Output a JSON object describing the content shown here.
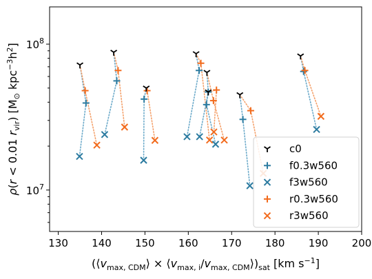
{
  "chart_data": {
    "type": "scatter",
    "xlabel": "(⟨v_max,CDM⟩ × ⟨v_max,i/v_max,CDM⟩)_sat [km s⁻¹]",
    "ylabel": "ρ(r < 0.01 r_vir) [M⊙ kpc⁻³ h²]",
    "xlim": [
      128,
      200
    ],
    "ylim": [
      5200000,
      180000000
    ],
    "yscale": "log",
    "x_ticks": [
      130,
      140,
      150,
      160,
      170,
      180,
      190,
      200
    ],
    "y_ticks": [
      {
        "value": 10000000,
        "label": "10^7"
      },
      {
        "value": 100000000,
        "label": "10^8"
      }
    ],
    "grid": false,
    "legend_position": "lower right",
    "groups": [
      {
        "c0": [
          135.0,
          72000000
        ],
        "f03": [
          136.4,
          39500000
        ],
        "f3": [
          134.9,
          17000000
        ],
        "r03": [
          136.2,
          48000000
        ],
        "r3": [
          138.9,
          20300000
        ]
      },
      {
        "c0": [
          142.8,
          88000000
        ],
        "f03": [
          143.5,
          56000000
        ],
        "f3": [
          140.7,
          24000000
        ],
        "r03": [
          143.8,
          66000000
        ],
        "r3": [
          145.3,
          27000000
        ]
      },
      {
        "c0": [
          150.3,
          50000000
        ],
        "f03": [
          149.8,
          42000000
        ],
        "f3": [
          149.7,
          16000000
        ],
        "r03": [
          150.5,
          48000000
        ],
        "r3": [
          152.3,
          21900000
        ]
      },
      {
        "c0": [
          161.8,
          86000000
        ],
        "f03": [
          162.5,
          66000000
        ],
        "f3": [
          159.7,
          23200000
        ],
        "r03": [
          162.9,
          74000000
        ],
        "r3": [
          164.9,
          22000000
        ]
      },
      {
        "c0": [
          164.3,
          64000000
        ],
        "f03": [
          164.6,
          47000000
        ],
        "f3": [
          162.6,
          23200000
        ],
        "r03": [
          165.8,
          41000000
        ],
        "r3": [
          168.3,
          22000000
        ]
      },
      {
        "c0": [
          164.6,
          47000000
        ],
        "f03": [
          164.2,
          38500000
        ],
        "f3": [
          166.3,
          20600000
        ],
        "r03": [
          166.5,
          48500000
        ],
        "r3": [
          165.9,
          25000000
        ]
      },
      {
        "c0": [
          171.9,
          45000000
        ],
        "f03": [
          172.6,
          30500000
        ],
        "f3": [
          174.2,
          10700000
        ],
        "r03": [
          174.4,
          35000000
        ],
        "r3": [
          177.3,
          13000000
        ]
      },
      {
        "c0": [
          185.9,
          83000000
        ],
        "f03": [
          186.6,
          65000000
        ],
        "f3": [
          189.6,
          26000000
        ],
        "r03": [
          186.9,
          66000000
        ],
        "r3": [
          190.6,
          32000000
        ]
      }
    ],
    "series": [
      {
        "key": "c0",
        "name": "c0",
        "marker": "tri",
        "color": "#000000"
      },
      {
        "key": "f03",
        "name": "f0.3w560",
        "marker": "plus",
        "color": "#2c7ba0"
      },
      {
        "key": "f3",
        "name": "f3w560",
        "marker": "x",
        "color": "#2c7ba0"
      },
      {
        "key": "r03",
        "name": "r0.3w560",
        "marker": "plus",
        "color": "#f26b1d"
      },
      {
        "key": "r3",
        "name": "r3w560",
        "marker": "x",
        "color": "#f26b1d"
      }
    ],
    "connector_colors": {
      "f": "#6aa9c9",
      "r": "#f4a06a"
    }
  }
}
